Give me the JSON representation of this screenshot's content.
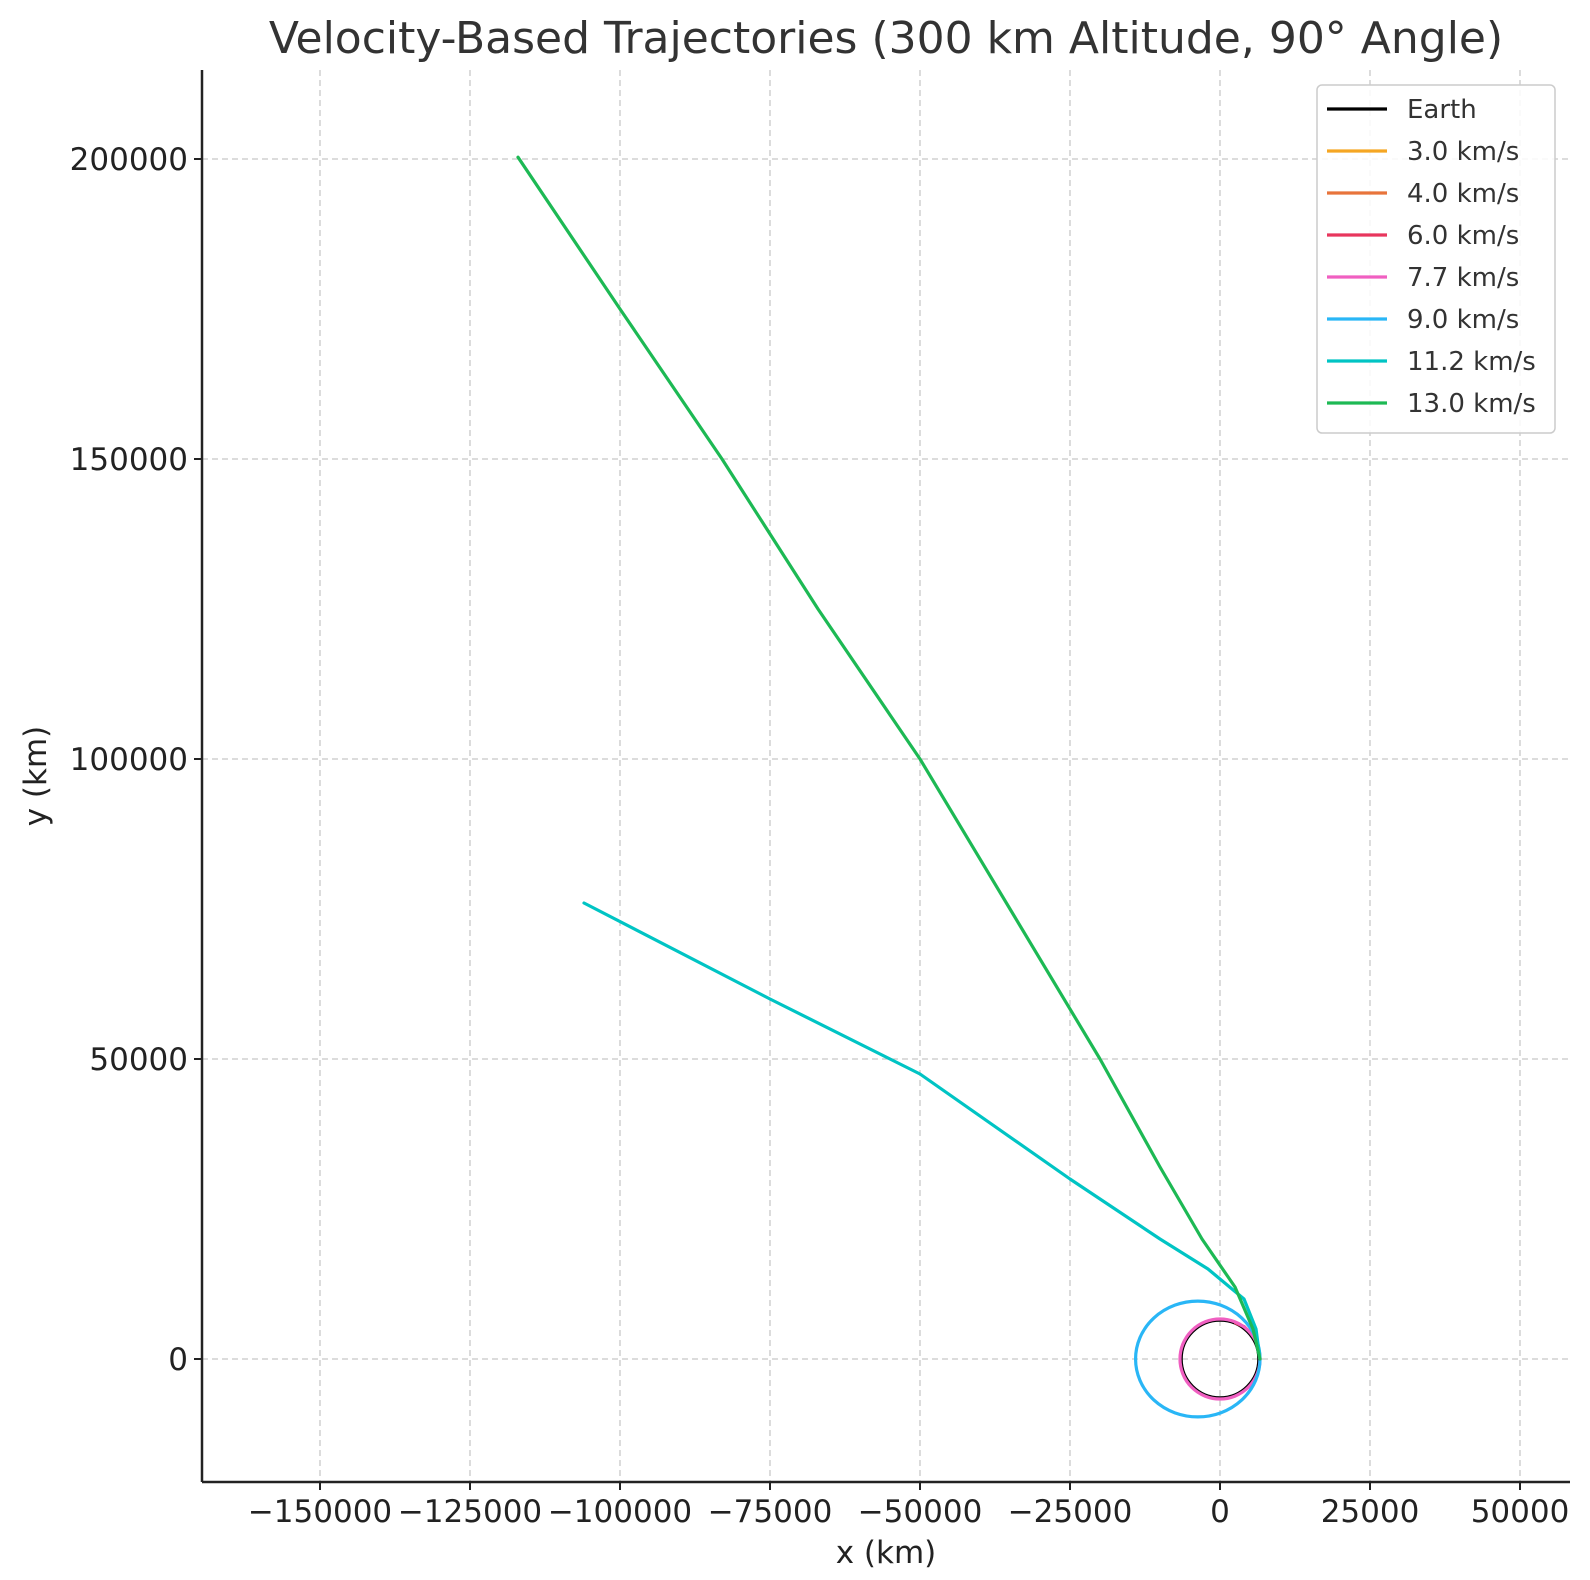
{
  "chart_data": {
    "type": "line",
    "title": "Velocity-Based Trajectories (300 km Altitude, 90° Angle)",
    "xlabel": "x (km)",
    "ylabel": "y (km)",
    "xlim": [
      -167000,
      57000
    ],
    "ylim": [
      -20000,
      210500
    ],
    "x_ticks": [
      -150000,
      -125000,
      -100000,
      -75000,
      -50000,
      -25000,
      0,
      25000,
      50000
    ],
    "y_ticks": [
      0,
      50000,
      100000,
      150000,
      200000
    ],
    "x_tick_labels": [
      "−150000",
      "−125000",
      "−100000",
      "−75000",
      "−50000",
      "−25000",
      "0",
      "25000",
      "50000"
    ],
    "y_tick_labels": [
      "0",
      "50000",
      "100000",
      "150000",
      "200000"
    ],
    "grid": true,
    "legend_position": "top-right",
    "series": [
      {
        "name": "Earth",
        "color": "#000000",
        "kind": "circle",
        "center": [
          0,
          0
        ],
        "radius": 6371
      },
      {
        "name": "3.0 km/s",
        "color": "#f5a623",
        "kind": "points",
        "points": [
          [
            6671,
            0
          ],
          [
            6550,
            1200
          ],
          [
            6300,
            2000
          ]
        ]
      },
      {
        "name": "4.0 km/s",
        "color": "#e8743b",
        "kind": "points",
        "points": [
          [
            6671,
            0
          ],
          [
            6450,
            1800
          ],
          [
            6000,
            2900
          ]
        ]
      },
      {
        "name": "6.0 km/s",
        "color": "#e8365d",
        "kind": "points",
        "points": [
          [
            6671,
            0
          ],
          [
            6300,
            2500
          ],
          [
            5400,
            4100
          ],
          [
            4000,
            5400
          ],
          [
            2600,
            6000
          ]
        ]
      },
      {
        "name": "7.7 km/s",
        "color": "#f05fc1",
        "kind": "ellipse",
        "center": [
          0,
          0
        ],
        "rx": 6671,
        "ry": 6671
      },
      {
        "name": "9.0 km/s",
        "color": "#29b6f6",
        "kind": "ellipse",
        "center": [
          -3700,
          0
        ],
        "rx": 10371,
        "ry": 9650
      },
      {
        "name": "11.2 km/s",
        "color": "#00c4c4",
        "kind": "points",
        "points": [
          [
            6671,
            0
          ],
          [
            6000,
            5000
          ],
          [
            4000,
            10000
          ],
          [
            -2000,
            15000
          ],
          [
            -10000,
            20000
          ],
          [
            -25000,
            30000
          ],
          [
            -50000,
            47500
          ],
          [
            -75000,
            60000
          ],
          [
            -106000,
            76000
          ]
        ]
      },
      {
        "name": "13.0 km/s",
        "color": "#1db954",
        "kind": "points",
        "points": [
          [
            6671,
            0
          ],
          [
            5500,
            5000
          ],
          [
            2500,
            12000
          ],
          [
            -3000,
            20000
          ],
          [
            -10000,
            32000
          ],
          [
            -20000,
            50000
          ],
          [
            -35000,
            75000
          ],
          [
            -50000,
            100000
          ],
          [
            -67000,
            125000
          ],
          [
            -83000,
            150000
          ],
          [
            -100000,
            175000
          ],
          [
            -117000,
            200300
          ]
        ]
      }
    ]
  }
}
